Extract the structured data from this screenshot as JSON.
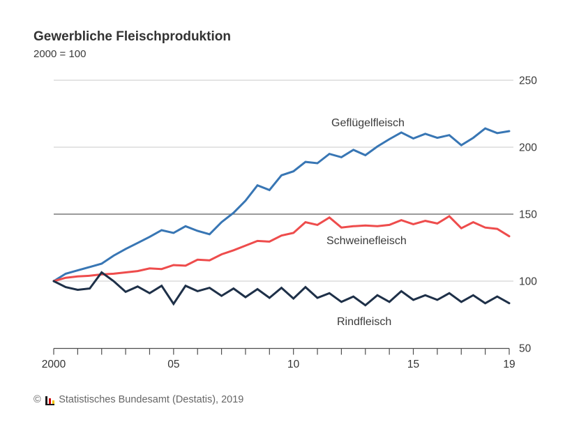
{
  "header": {
    "title": "Gewerbliche Fleischproduktion",
    "subtitle": "2000 = 100"
  },
  "chart_data": {
    "type": "line",
    "title": "Gewerbliche Fleischproduktion",
    "subtitle": "2000 = 100",
    "index_note": "2000 = 100",
    "grid": "horizontal",
    "legend_position": "inline-labels",
    "ylim": [
      50,
      250
    ],
    "y_ticks": [
      50,
      100,
      150,
      200,
      250
    ],
    "emphasized_gridline": 150,
    "x_tick_years": [
      2000,
      2001,
      2002,
      2003,
      2004,
      2005,
      2006,
      2007,
      2008,
      2009,
      2010,
      2011,
      2012,
      2013,
      2014,
      2015,
      2016,
      2017,
      2018,
      2019
    ],
    "x_tick_labels": [
      {
        "year": 2000,
        "label": "2000"
      },
      {
        "year": 2005,
        "label": "05"
      },
      {
        "year": 2010,
        "label": "10"
      },
      {
        "year": 2015,
        "label": "15"
      },
      {
        "year": 2019,
        "label": "19"
      }
    ],
    "x": [
      2000,
      2000.5,
      2001,
      2001.5,
      2002,
      2002.5,
      2003,
      2003.5,
      2004,
      2004.5,
      2005,
      2005.5,
      2006,
      2006.5,
      2007,
      2007.5,
      2008,
      2008.5,
      2009,
      2009.5,
      2010,
      2010.5,
      2011,
      2011.5,
      2012,
      2012.5,
      2013,
      2013.5,
      2014,
      2014.5,
      2015,
      2015.5,
      2016,
      2016.5,
      2017,
      2017.5,
      2018,
      2018.5,
      2019
    ],
    "series": [
      {
        "name": "Geflügelfleisch",
        "color": "#3876b4",
        "values": [
          100,
          105.5,
          108,
          110.5,
          113,
          119,
          124,
          128.5,
          133,
          138,
          136,
          141,
          137.5,
          135,
          144,
          151,
          160,
          171.5,
          168,
          179,
          182,
          189,
          188,
          195,
          192.5,
          198,
          194,
          200.5,
          206,
          211,
          206.5,
          210,
          207,
          209,
          201.5,
          207,
          214,
          210.5,
          212
        ]
      },
      {
        "name": "Schweinefleisch",
        "color": "#ee4c4c",
        "values": [
          100,
          102.5,
          103.5,
          104,
          105,
          105.5,
          106.5,
          107.5,
          109.5,
          109,
          112,
          111.5,
          116,
          115.5,
          120,
          123,
          126.5,
          130,
          129.5,
          134,
          136,
          144,
          142,
          147.5,
          140,
          141,
          141.5,
          141,
          142,
          145.5,
          142.5,
          145,
          143,
          148.5,
          139.5,
          144,
          140,
          139,
          133.5
        ]
      },
      {
        "name": "Rindfleisch",
        "color": "#1e3048",
        "values": [
          100,
          95.5,
          93.5,
          94.5,
          106.5,
          100,
          92,
          96,
          91,
          96.5,
          83,
          96.5,
          92.5,
          95,
          89,
          94.5,
          88,
          94,
          87.5,
          95,
          87,
          95.5,
          87.5,
          91,
          84.5,
          88.5,
          82,
          89.5,
          84.5,
          92.5,
          86,
          89.5,
          86,
          91,
          84.5,
          89.5,
          83.5,
          88.5,
          83.5
        ]
      }
    ]
  },
  "footer": {
    "copyright": "©",
    "source": "Statistisches Bundesamt (Destatis), 2019"
  }
}
